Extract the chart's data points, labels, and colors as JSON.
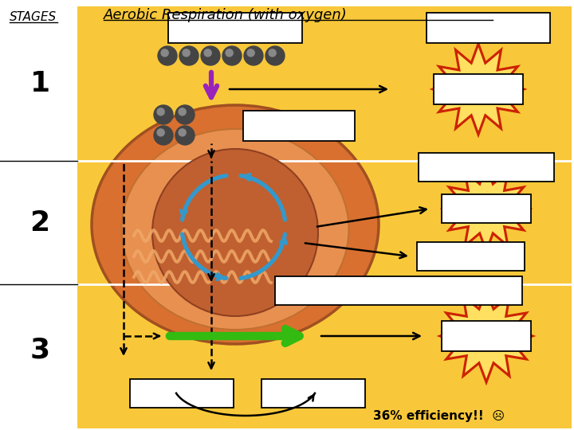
{
  "title": "Aerobic Respiration (with oxygen)",
  "stages_label": "STAGES",
  "stage_numbers": [
    "1",
    "2",
    "3"
  ],
  "efficiency_text": "36% efficiency!!",
  "efficiency_emoji": "☹",
  "bg_orange": "#F8C83A",
  "mito_outer": "#D97030",
  "mito_mid": "#C86828",
  "mito_cristae": "#E89050",
  "mito_matrix": "#C06030",
  "cycle_blue": "#3399CC",
  "purple": "#9922BB",
  "burst_red": "#CC2200",
  "burst_yellow": "#FFE060",
  "green_arr": "#33BB11",
  "sphere_dark": "#444444",
  "sphere_hi": "#888888",
  "white": "#FFFFFF",
  "black": "#000000"
}
